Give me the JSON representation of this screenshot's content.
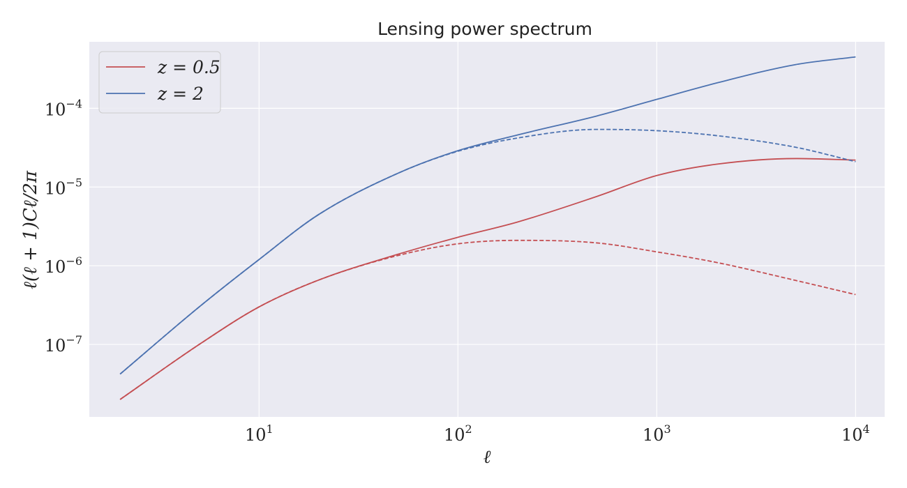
{
  "chart_data": {
    "type": "line",
    "title": "Lensing power spectrum",
    "xlabel": "ℓ",
    "ylabel": "ℓ(ℓ + 1)Cℓ/2π",
    "x_scale": "log",
    "y_scale": "log",
    "xlim": [
      1.4,
      14000
    ],
    "ylim": [
      1.2e-08,
      0.0007
    ],
    "x_ticks": [
      {
        "value": 10,
        "base": "10",
        "exp": "1"
      },
      {
        "value": 100,
        "base": "10",
        "exp": "2"
      },
      {
        "value": 1000,
        "base": "10",
        "exp": "3"
      },
      {
        "value": 10000,
        "base": "10",
        "exp": "4"
      }
    ],
    "y_ticks": [
      {
        "value": 1e-07,
        "base": "10",
        "exp": "−7"
      },
      {
        "value": 1e-06,
        "base": "10",
        "exp": "−6"
      },
      {
        "value": 1e-05,
        "base": "10",
        "exp": "−5"
      },
      {
        "value": 0.0001,
        "base": "10",
        "exp": "−4"
      }
    ],
    "grid": true,
    "legend_position": "top-left",
    "background_color": "#eaeaf2",
    "series": [
      {
        "name": "z = 0.5",
        "color": "#c44e52",
        "style": "solid",
        "points": [
          [
            2,
            2e-08
          ],
          [
            5,
            1e-07
          ],
          [
            10,
            3e-07
          ],
          [
            20,
            6.6e-07
          ],
          [
            50,
            1.4e-06
          ],
          [
            100,
            2.3e-06
          ],
          [
            200,
            3.6e-06
          ],
          [
            500,
            7.6e-06
          ],
          [
            1000,
            1.4e-05
          ],
          [
            2000,
            1.95e-05
          ],
          [
            5000,
            2.3e-05
          ],
          [
            10000,
            2.2e-05
          ]
        ]
      },
      {
        "name": "z = 2",
        "color": "#4c72b0",
        "style": "solid",
        "points": [
          [
            2,
            4.2e-08
          ],
          [
            5,
            3e-07
          ],
          [
            10,
            1.2e-06
          ],
          [
            20,
            4.5e-06
          ],
          [
            50,
            1.5e-05
          ],
          [
            100,
            2.9e-05
          ],
          [
            200,
            4.6e-05
          ],
          [
            500,
            8e-05
          ],
          [
            1000,
            0.00013
          ],
          [
            2000,
            0.00021
          ],
          [
            5000,
            0.00036
          ],
          [
            10000,
            0.00045
          ]
        ]
      },
      {
        "name": "",
        "color": "#c44e52",
        "style": "dashed",
        "points": [
          [
            2,
            2e-08
          ],
          [
            5,
            1e-07
          ],
          [
            10,
            3e-07
          ],
          [
            20,
            6.6e-07
          ],
          [
            50,
            1.35e-06
          ],
          [
            100,
            1.9e-06
          ],
          [
            200,
            2.1e-06
          ],
          [
            500,
            1.95e-06
          ],
          [
            1000,
            1.5e-06
          ],
          [
            2000,
            1.1e-06
          ],
          [
            5000,
            6.5e-07
          ],
          [
            10000,
            4.3e-07
          ]
        ]
      },
      {
        "name": "",
        "color": "#4c72b0",
        "style": "dashed",
        "points": [
          [
            2,
            4.2e-08
          ],
          [
            5,
            3e-07
          ],
          [
            10,
            1.2e-06
          ],
          [
            20,
            4.5e-06
          ],
          [
            50,
            1.5e-05
          ],
          [
            100,
            2.85e-05
          ],
          [
            200,
            4.2e-05
          ],
          [
            500,
            5.4e-05
          ],
          [
            1000,
            5.2e-05
          ],
          [
            2000,
            4.5e-05
          ],
          [
            5000,
            3.2e-05
          ],
          [
            10000,
            2.1e-05
          ]
        ]
      }
    ]
  }
}
